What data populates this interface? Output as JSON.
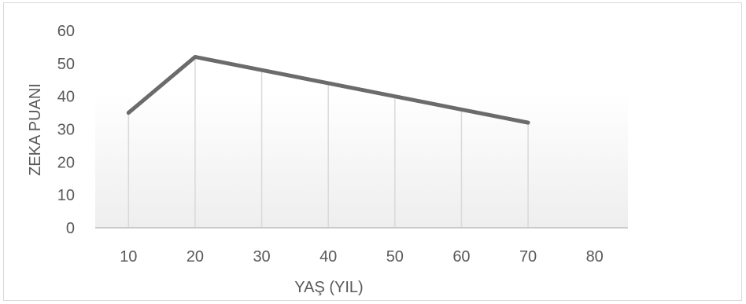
{
  "chart_data": {
    "type": "line",
    "title": "",
    "xlabel": "YAŞ (YIL)",
    "ylabel": "ZEKA PUANI",
    "x_ticks": [
      "10",
      "20",
      "30",
      "40",
      "50",
      "60",
      "70",
      "80"
    ],
    "y_ticks": [
      "0",
      "10",
      "20",
      "30",
      "40",
      "50",
      "60"
    ],
    "xlim": [
      5,
      85
    ],
    "ylim": [
      0,
      60
    ],
    "grid": "vertical",
    "legend": "none",
    "series": [
      {
        "x": [
          10,
          20,
          30,
          40,
          50,
          60,
          70
        ],
        "y": [
          35,
          52,
          48,
          44,
          40,
          36,
          32
        ]
      }
    ],
    "colors": {
      "line": "#6b6b6b",
      "grid": "#d9d9d9",
      "axis": "#bfbfbf",
      "text": "#595959"
    }
  }
}
